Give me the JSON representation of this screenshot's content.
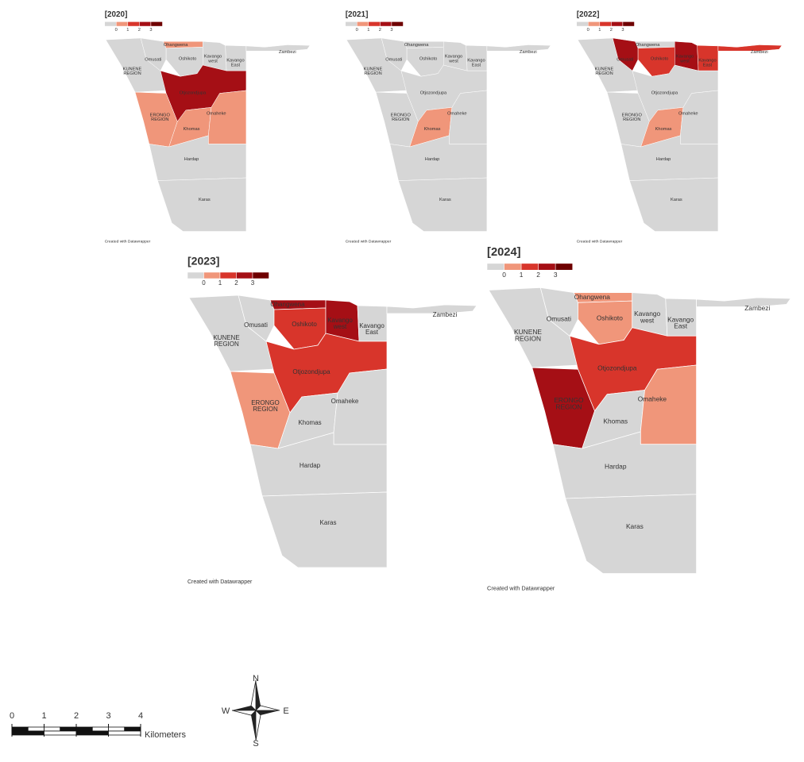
{
  "regions": [
    "KUNENE REGION",
    "Omusati",
    "Ohangwena",
    "Oshikoto",
    "Kavango west",
    "Kavango East",
    "Zambezi",
    "Otjozondjupa",
    "ERONGO REGION",
    "Khomas",
    "Omaheke",
    "Hardap",
    "Karas"
  ],
  "maps": [
    {
      "title": "[2020]",
      "values": [
        0,
        0,
        1,
        0,
        0,
        0,
        0,
        3,
        1,
        1,
        1,
        0,
        0
      ]
    },
    {
      "title": "[2021]",
      "values": [
        0,
        0,
        0,
        0,
        0,
        0,
        0,
        0,
        0,
        1,
        0,
        0,
        0
      ]
    },
    {
      "title": "[2022]",
      "values": [
        0,
        3,
        0,
        2,
        3,
        2,
        2,
        0,
        0,
        1,
        0,
        0,
        0
      ]
    },
    {
      "title": "[2023]",
      "values": [
        0,
        0,
        3,
        2,
        3,
        0,
        0,
        2,
        1,
        0,
        0,
        0,
        0
      ]
    },
    {
      "title": "[2024]",
      "values": [
        0,
        0,
        1,
        1,
        0,
        0,
        0,
        2,
        3,
        0,
        1,
        0,
        0
      ]
    }
  ],
  "legend": {
    "colors": [
      "#d6d6d6",
      "#f0967a",
      "#d8352b",
      "#a50f15",
      "#6e0000"
    ],
    "ticks": [
      0,
      1,
      2,
      3
    ]
  },
  "credit": "Created with Datawrapper",
  "scale_bar": {
    "ticks": [
      0,
      1,
      2,
      3,
      4
    ],
    "unit": "Kilometers"
  },
  "compass": {
    "north": "N",
    "south": "S",
    "east": "E",
    "west": "W"
  }
}
